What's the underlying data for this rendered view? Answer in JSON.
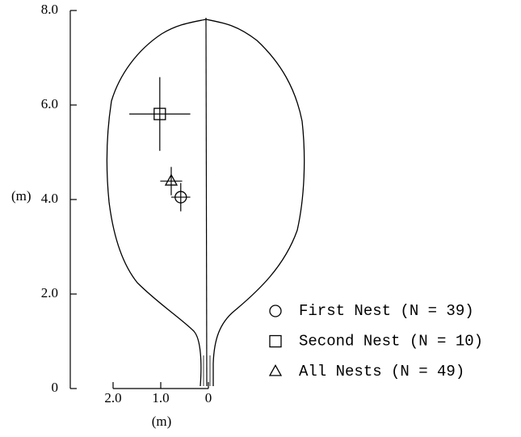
{
  "chart_data": {
    "type": "scatter",
    "xlabel": "(m)",
    "ylabel": "(m)",
    "xlim": [
      2.0,
      0
    ],
    "xticks": [
      {
        "value": 2.0,
        "label": "2.0"
      },
      {
        "value": 1.0,
        "label": "1.0"
      },
      0
    ],
    "ylim": [
      0,
      8.0
    ],
    "yticks": [
      0,
      {
        "value": 2.0,
        "label": "2.0"
      },
      {
        "value": 4.0,
        "label": "4.0"
      },
      {
        "value": 6.0,
        "label": "6.0"
      },
      {
        "value": 8.0,
        "label": "8.0"
      }
    ],
    "color": "#000000",
    "series": [
      {
        "name": "First Nest (N = 39)",
        "marker": "circle",
        "x": [
          0.58
        ],
        "values": [
          4.05
        ],
        "xerr": [
          0.2
        ],
        "yerr": [
          0.3
        ]
      },
      {
        "name": "Second Nest (N = 10)",
        "marker": "square",
        "x": [
          1.02
        ],
        "values": [
          5.81
        ],
        "xerr": [
          0.64
        ],
        "yerr": [
          0.78
        ]
      },
      {
        "name": "All Nests (N = 49)",
        "marker": "triangle",
        "x": [
          0.78
        ],
        "values": [
          4.39
        ],
        "xerr": [
          0.23
        ],
        "yerr": [
          0.3
        ]
      }
    ]
  }
}
